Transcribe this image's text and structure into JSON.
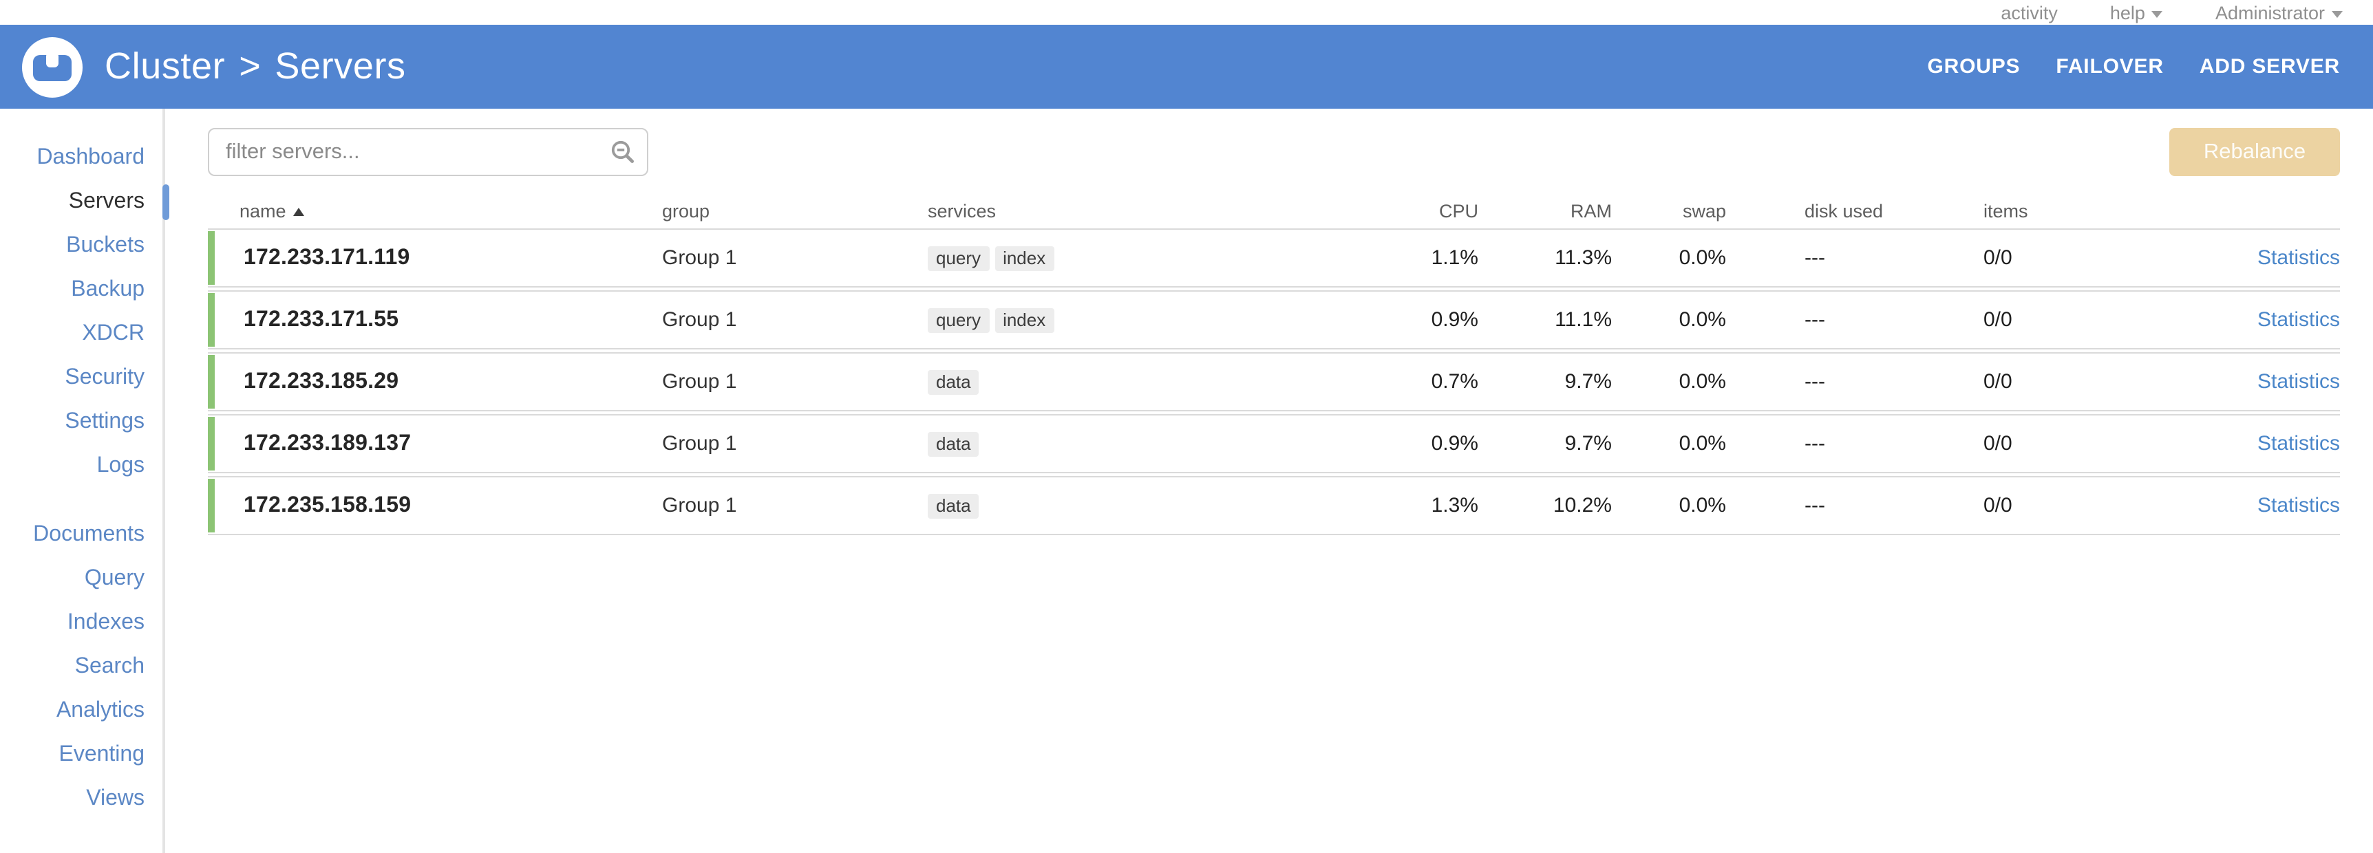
{
  "topbar": {
    "links": [
      {
        "label": "activity"
      },
      {
        "label": "help"
      },
      {
        "label": "Administrator"
      }
    ]
  },
  "header": {
    "breadcrumb_left": "Cluster",
    "breadcrumb_sep": ">",
    "breadcrumb_right": "Servers",
    "menu": [
      {
        "label": "GROUPS"
      },
      {
        "label": "FAILOVER"
      },
      {
        "label": "ADD SERVER"
      }
    ]
  },
  "sidebar": {
    "active": "Servers",
    "groups": [
      {
        "items": [
          "Dashboard",
          "Servers",
          "Buckets",
          "Backup",
          "XDCR",
          "Security",
          "Settings",
          "Logs"
        ]
      },
      {
        "items": [
          "Documents",
          "Query",
          "Indexes",
          "Search",
          "Analytics",
          "Eventing",
          "Views"
        ]
      }
    ]
  },
  "toolbar": {
    "filter_placeholder": "filter servers...",
    "rebalance_label": "Rebalance"
  },
  "table": {
    "columns": [
      "name",
      "group",
      "services",
      "CPU",
      "RAM",
      "swap",
      "disk used",
      "items"
    ],
    "stats_label": "Statistics",
    "rows": [
      {
        "name": "172.233.171.119",
        "group": "Group 1",
        "services": [
          "query",
          "index"
        ],
        "cpu": "1.1%",
        "ram": "11.3%",
        "swap": "0.0%",
        "disk_used": "---",
        "items": "0/0"
      },
      {
        "name": "172.233.171.55",
        "group": "Group 1",
        "services": [
          "query",
          "index"
        ],
        "cpu": "0.9%",
        "ram": "11.1%",
        "swap": "0.0%",
        "disk_used": "---",
        "items": "0/0"
      },
      {
        "name": "172.233.185.29",
        "group": "Group 1",
        "services": [
          "data"
        ],
        "cpu": "0.7%",
        "ram": "9.7%",
        "swap": "0.0%",
        "disk_used": "---",
        "items": "0/0"
      },
      {
        "name": "172.233.189.137",
        "group": "Group 1",
        "services": [
          "data"
        ],
        "cpu": "0.9%",
        "ram": "9.7%",
        "swap": "0.0%",
        "disk_used": "---",
        "items": "0/0"
      },
      {
        "name": "172.235.158.159",
        "group": "Group 1",
        "services": [
          "data"
        ],
        "cpu": "1.3%",
        "ram": "10.2%",
        "swap": "0.0%",
        "disk_used": "---",
        "items": "0/0"
      }
    ]
  },
  "colors": {
    "header_blue": "#5285d1",
    "nav_link_blue": "#5b87c5",
    "statistics_link": "#4a86c9",
    "health_green": "#8cc474",
    "rebalance_disabled": "#ecd3a2"
  }
}
